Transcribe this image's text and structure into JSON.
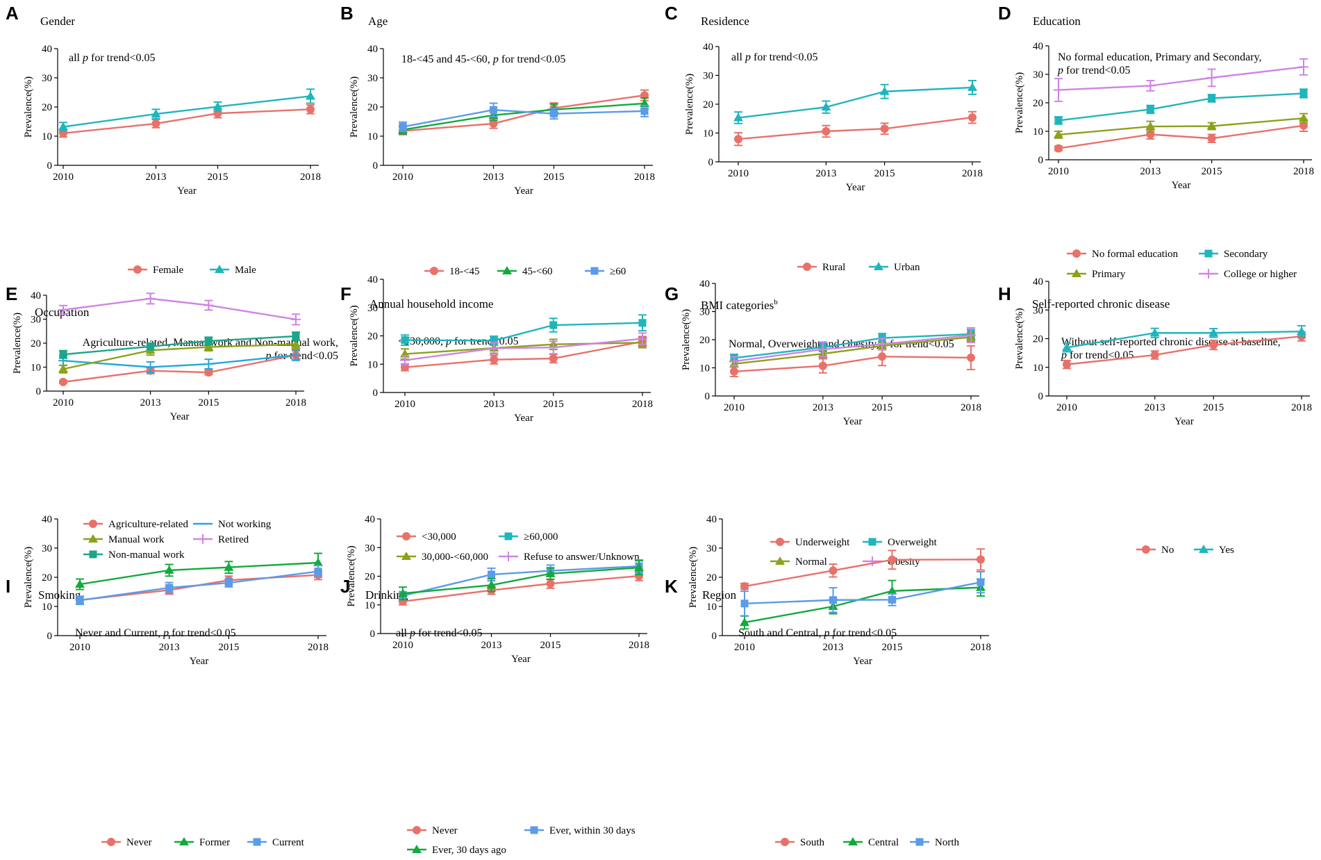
{
  "colors": {
    "red": "#E8716A",
    "cyan": "#1FB5BC",
    "green": "#12AA3C",
    "blue": "#5B9BE8",
    "olive": "#8BA21A",
    "purple": "#CF84E4",
    "teal": "#1BA58A",
    "skyblue": "#22A7DE"
  },
  "chart_data": [
    {
      "type": "line",
      "letter": "A",
      "title": "Gender",
      "note": [
        "all p for trend<0.05"
      ],
      "x": [
        2010,
        2013,
        2015,
        2018
      ],
      "xlabel": "Year",
      "ylabel": "Prevalence(%)",
      "ylim": [
        0,
        40
      ],
      "series": [
        {
          "name": "Female",
          "color": "red",
          "marker": "circle",
          "values": [
            11,
            14.3,
            17.8,
            19.2
          ],
          "err": [
            1.3,
            1.4,
            1.5,
            1.5
          ]
        },
        {
          "name": "Male",
          "color": "cyan",
          "marker": "triangle",
          "values": [
            13.2,
            17.6,
            20.1,
            23.7
          ],
          "err": [
            1.5,
            1.6,
            1.6,
            2.4
          ]
        }
      ],
      "legend_rows": [
        [
          0,
          1
        ]
      ]
    },
    {
      "type": "line",
      "letter": "B",
      "title": "Age",
      "note": [
        "18-<45 and 45-<60, p for trend<0.05"
      ],
      "x": [
        2010,
        2013,
        2015,
        2018
      ],
      "xlabel": "Year",
      "ylabel": "Prevalence(%)",
      "ylim": [
        0,
        40
      ],
      "series": [
        {
          "name": "18-<45",
          "color": "red",
          "marker": "circle",
          "values": [
            11.8,
            14.3,
            19.6,
            24
          ],
          "err": [
            1.3,
            1.6,
            1.8,
            1.8
          ]
        },
        {
          "name": "45-<60",
          "color": "green",
          "marker": "triangle",
          "values": [
            12.2,
            17.2,
            19.1,
            21.2
          ],
          "err": [
            1.4,
            1.8,
            1.9,
            1.9
          ]
        },
        {
          "name": "≥60",
          "color": "blue",
          "marker": "square",
          "values": [
            13.2,
            19,
            17.7,
            18.6
          ],
          "err": [
            1.6,
            2.3,
            1.8,
            1.9
          ]
        }
      ],
      "legend_rows": [
        [
          0,
          1,
          2
        ]
      ]
    },
    {
      "type": "line",
      "letter": "C",
      "title": "Residence",
      "note": [
        "all p for trend<0.05"
      ],
      "x": [
        2010,
        2013,
        2015,
        2018
      ],
      "xlabel": "Year",
      "ylabel": "Prevalence(%)",
      "ylim": [
        0,
        40
      ],
      "series": [
        {
          "name": "Rural",
          "color": "red",
          "marker": "circle",
          "values": [
            7.9,
            10.6,
            11.5,
            15.4
          ],
          "err": [
            2.2,
            2.0,
            1.9,
            2.0
          ]
        },
        {
          "name": "Urban",
          "color": "cyan",
          "marker": "triangle",
          "values": [
            15.3,
            19,
            24.4,
            25.8
          ],
          "err": [
            2.0,
            2.1,
            2.4,
            2.4
          ]
        }
      ],
      "legend_rows": [
        [
          0,
          1
        ]
      ]
    },
    {
      "type": "line",
      "letter": "D",
      "title": "Education",
      "note": [
        "No formal education, Primary and Secondary,",
        "p for trend<0.05"
      ],
      "x": [
        2010,
        2013,
        2015,
        2018
      ],
      "xlabel": "Year",
      "ylabel": "Prevalence(%)",
      "ylim": [
        0,
        40
      ],
      "series": [
        {
          "name": "No formal education",
          "color": "red",
          "marker": "circle",
          "values": [
            4,
            8.9,
            7.5,
            12
          ],
          "err": [
            0.8,
            1.6,
            1.4,
            2.0
          ]
        },
        {
          "name": "Secondary",
          "color": "cyan",
          "marker": "square",
          "values": [
            13.8,
            17.7,
            21.6,
            23.3
          ],
          "err": [
            1.3,
            1.4,
            1.3,
            1.5
          ]
        },
        {
          "name": "Primary",
          "color": "olive",
          "marker": "triangle",
          "values": [
            8.8,
            11.7,
            11.8,
            14.6
          ],
          "err": [
            1.2,
            1.8,
            1.2,
            1.6
          ]
        },
        {
          "name": "College or higher",
          "color": "purple",
          "marker": "plus",
          "values": [
            24.5,
            26,
            28.8,
            32.6
          ],
          "err": [
            4.0,
            1.8,
            3.0,
            2.8
          ]
        }
      ],
      "legend_rows": [
        [
          0,
          1
        ],
        [
          2,
          3
        ]
      ]
    },
    {
      "type": "line",
      "letter": "E",
      "title": "Occupation",
      "note": [
        "Agriculture-related, Manual work and Non-manual work,",
        "p for trend<0.05"
      ],
      "note_align": "end",
      "x": [
        2010,
        2013,
        2015,
        2018
      ],
      "xlabel": "Year",
      "ylabel": "Prevalence(%)",
      "ylim": [
        0,
        40
      ],
      "series": [
        {
          "name": "Agriculture-related",
          "color": "red",
          "marker": "circle",
          "values": [
            3.8,
            8.5,
            7.8,
            15
          ],
          "err": [
            0.6,
            1.2,
            1.0,
            1.8
          ]
        },
        {
          "name": "Not working",
          "color": "skyblue",
          "marker": "line",
          "values": [
            12.7,
            10,
            11.3,
            15
          ],
          "err": [
            2.0,
            2.2,
            2.0,
            2.2
          ]
        },
        {
          "name": "Manual work",
          "color": "olive",
          "marker": "triangle",
          "values": [
            9.2,
            17,
            18.4,
            19.5
          ],
          "err": [
            1.6,
            2.0,
            1.6,
            1.8
          ]
        },
        {
          "name": "Retired",
          "color": "purple",
          "marker": "plus",
          "values": [
            33.9,
            38.6,
            35.8,
            29.9
          ],
          "err": [
            1.8,
            2.2,
            2.0,
            2.2
          ]
        },
        {
          "name": "Non-manual work",
          "color": "teal",
          "marker": "square",
          "values": [
            15.3,
            18.6,
            20.9,
            22.9
          ],
          "err": [
            1.6,
            1.4,
            1.6,
            1.7
          ]
        }
      ],
      "legend_rows": [
        [
          0,
          1
        ],
        [
          2,
          3
        ],
        [
          4
        ]
      ]
    },
    {
      "type": "line",
      "letter": "F",
      "title": "Annual household income",
      "note": [
        "<¥30,000, p for trend<0.05"
      ],
      "x": [
        2010,
        2013,
        2015,
        2018
      ],
      "xlabel": "Year",
      "ylabel": "Prevalence(%)",
      "ylim": [
        0,
        40
      ],
      "series": [
        {
          "name": "<30,000",
          "color": "red",
          "marker": "circle",
          "values": [
            8.9,
            11.6,
            12,
            18
          ],
          "err": [
            1.2,
            1.5,
            1.5,
            1.8
          ]
        },
        {
          "name": "≥60,000",
          "color": "cyan",
          "marker": "square",
          "values": [
            18.5,
            18.3,
            23.8,
            24.6
          ],
          "err": [
            1.8,
            1.6,
            2.4,
            2.8
          ]
        },
        {
          "name": "30,000-<60,000",
          "color": "olive",
          "marker": "triangle",
          "values": [
            13.6,
            15.7,
            17,
            17.6
          ],
          "err": [
            1.8,
            1.8,
            1.8,
            1.8
          ]
        },
        {
          "name": "Refuse to answer/Unknown",
          "color": "purple",
          "marker": "plus",
          "values": [
            11.4,
            15.6,
            15.9,
            19
          ],
          "err": [
            1.6,
            2.0,
            2.2,
            2.0
          ]
        }
      ],
      "legend_rows": [
        [
          0,
          1
        ],
        [
          2,
          3
        ]
      ]
    },
    {
      "type": "line",
      "letter": "G",
      "title": "BMI categories",
      "title_sup": "b",
      "note": [
        "Normal, Overweight and Obesity, p for trend<0.05"
      ],
      "x": [
        2010,
        2013,
        2015,
        2018
      ],
      "xlabel": "Year",
      "ylabel": "Prevalence(%)",
      "ylim": [
        0,
        40
      ],
      "series": [
        {
          "name": "Underweight",
          "color": "red",
          "marker": "circle",
          "values": [
            8.7,
            10.7,
            14,
            13.6
          ],
          "err": [
            1.8,
            2.5,
            3.2,
            4.2
          ]
        },
        {
          "name": "Overweight",
          "color": "cyan",
          "marker": "square",
          "values": [
            13.5,
            17.3,
            20.6,
            22
          ],
          "err": [
            1.3,
            1.5,
            1.6,
            1.6
          ]
        },
        {
          "name": "Normal",
          "color": "olive",
          "marker": "triangle",
          "values": [
            11.4,
            15,
            17.8,
            20.9
          ],
          "err": [
            1.1,
            1.3,
            1.4,
            1.5
          ]
        },
        {
          "name": "Obesity",
          "color": "purple",
          "marker": "plus",
          "values": [
            12.3,
            16.6,
            18.4,
            21.6
          ],
          "err": [
            1.6,
            2.6,
            2.0,
            2.6
          ]
        }
      ],
      "legend_rows": [
        [
          0,
          1
        ],
        [
          2,
          3
        ]
      ]
    },
    {
      "type": "line",
      "letter": "H",
      "title": "Self-reported chronic disease",
      "note": [
        "Without self-reported chronic disease at baseline,",
        "p for trend<0.05"
      ],
      "x": [
        2010,
        2013,
        2015,
        2018
      ],
      "xlabel": "Year",
      "ylabel": "Prevalence(%)",
      "ylim": [
        0,
        40
      ],
      "series": [
        {
          "name": "No",
          "color": "red",
          "marker": "circle",
          "values": [
            11,
            14.3,
            17.8,
            20.8
          ],
          "err": [
            1.4,
            1.4,
            1.6,
            1.6
          ]
        },
        {
          "name": "Yes",
          "color": "cyan",
          "marker": "triangle",
          "values": [
            16.9,
            22,
            22,
            22.5
          ],
          "err": [
            1.5,
            1.6,
            1.5,
            2.0
          ]
        }
      ],
      "legend_rows": [
        [
          0,
          1
        ]
      ]
    },
    {
      "type": "line",
      "letter": "I",
      "title": "Smoking",
      "note": [
        "Never and Current, p for trend<0.05"
      ],
      "x": [
        2010,
        2013,
        2015,
        2018
      ],
      "xlabel": "Year",
      "ylabel": "Prevalence(%)",
      "ylim": [
        0,
        40
      ],
      "series": [
        {
          "name": "Never",
          "color": "red",
          "marker": "circle",
          "values": [
            12.2,
            15.6,
            19,
            20.8
          ],
          "err": [
            1.2,
            1.4,
            1.4,
            1.6
          ]
        },
        {
          "name": "Former",
          "color": "green",
          "marker": "triangle",
          "values": [
            17.6,
            22.4,
            23.4,
            25
          ],
          "err": [
            1.8,
            2.0,
            2.0,
            3.2
          ]
        },
        {
          "name": "Current",
          "color": "blue",
          "marker": "square",
          "values": [
            12.1,
            16.4,
            18.1,
            22
          ],
          "err": [
            1.4,
            1.8,
            1.4,
            2.0
          ]
        }
      ],
      "legend_rows": [
        [
          0,
          1,
          2
        ]
      ]
    },
    {
      "type": "line",
      "letter": "J",
      "title": "Drinking",
      "note": [
        "all p for trend<0.05"
      ],
      "x": [
        2010,
        2013,
        2015,
        2018
      ],
      "xlabel": "Year",
      "ylabel": "Prevalence(%)",
      "ylim": [
        0,
        40
      ],
      "series": [
        {
          "name": "Never",
          "color": "red",
          "marker": "circle",
          "values": [
            11.2,
            15.1,
            17.4,
            20.1
          ],
          "err": [
            1.2,
            1.4,
            1.6,
            1.6
          ]
        },
        {
          "name": "Ever, within 30 days",
          "color": "blue",
          "marker": "square",
          "values": [
            13.2,
            20.6,
            21.9,
            23.5
          ],
          "err": [
            1.4,
            2.2,
            2.0,
            2.2
          ]
        },
        {
          "name": "Ever, 30 days ago",
          "color": "green",
          "marker": "triangle",
          "values": [
            14,
            16.9,
            20.9,
            23
          ],
          "err": [
            2.2,
            2.2,
            2.0,
            2.4
          ]
        }
      ],
      "legend_rows": [
        [
          0,
          1
        ],
        [
          2
        ]
      ]
    },
    {
      "type": "line",
      "letter": "K",
      "title": "Region",
      "note": [
        "South and Central, p for trend<0.05"
      ],
      "x": [
        2010,
        2013,
        2015,
        2018
      ],
      "xlabel": "Year",
      "ylabel": "Prevalence(%)",
      "ylim": [
        0,
        40
      ],
      "series": [
        {
          "name": "South",
          "color": "red",
          "marker": "circle",
          "values": [
            16.9,
            22.3,
            26,
            26.1
          ],
          "err": [
            1.0,
            2.2,
            3.2,
            3.6
          ]
        },
        {
          "name": "Central",
          "color": "green",
          "marker": "triangle",
          "values": [
            4.5,
            10,
            15.3,
            16.5
          ],
          "err": [
            2.2,
            2.5,
            3.6,
            2.9
          ]
        },
        {
          "name": "North",
          "color": "blue",
          "marker": "square",
          "values": [
            11,
            12.2,
            12.3,
            18.3
          ],
          "err": [
            4.2,
            4.2,
            2.0,
            3.6
          ]
        }
      ],
      "legend_rows": [
        [
          0,
          1,
          2
        ]
      ]
    }
  ]
}
